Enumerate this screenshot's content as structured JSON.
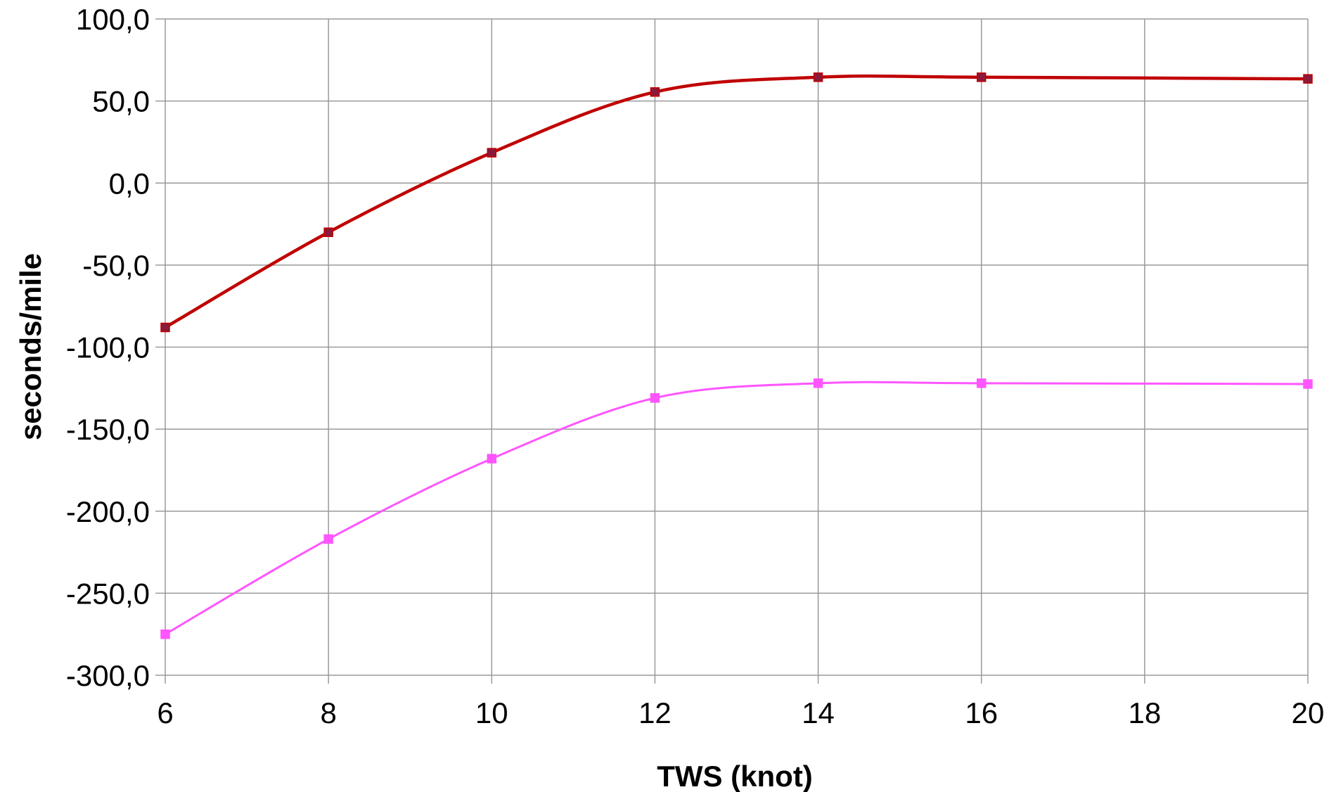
{
  "chart_data": {
    "type": "line",
    "title": "",
    "xlabel": "TWS (knot)",
    "ylabel": "seconds/mile",
    "x_ticks": [
      "6",
      "8",
      "10",
      "12",
      "14",
      "16",
      "18",
      "20"
    ],
    "y_ticks": [
      "100,0",
      "50,0",
      "0,0",
      "-50,0",
      "-100,0",
      "-150,0",
      "-200,0",
      "-250,0",
      "-300,0"
    ],
    "xlim": [
      6,
      20
    ],
    "ylim": [
      -300,
      100
    ],
    "grid": true,
    "legend": "none",
    "series": [
      {
        "color": "#c00000",
        "marker_color": "#8b1a3a",
        "x": [
          6,
          8,
          10,
          12,
          14,
          16,
          20
        ],
        "y": [
          -88,
          -30,
          18.5,
          55.5,
          64.5,
          64.5,
          63.5
        ]
      },
      {
        "color": "#ff55ff",
        "marker_color": "#ff55ff",
        "x": [
          6,
          8,
          10,
          12,
          14,
          16,
          20
        ],
        "y": [
          -275,
          -217,
          -168,
          -131,
          -122,
          -122,
          -122.5
        ]
      }
    ]
  }
}
